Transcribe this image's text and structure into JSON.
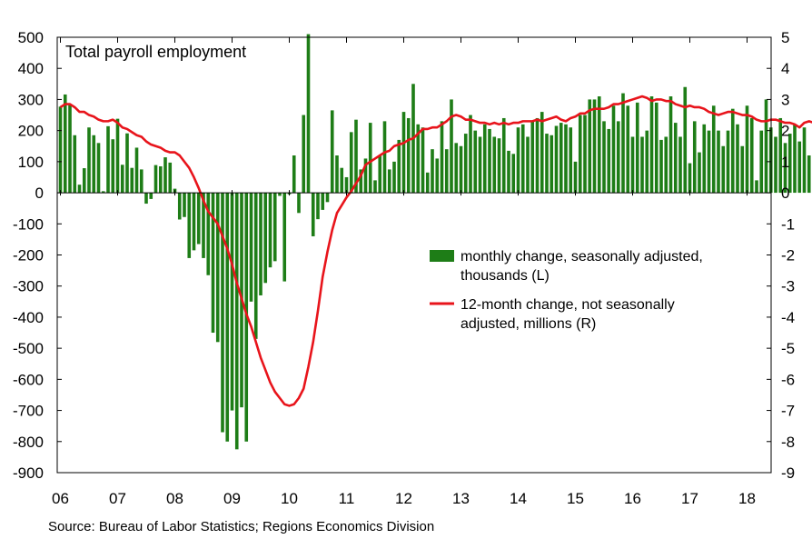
{
  "colors": {
    "bars": "#1e7d17",
    "line": "#e8141b",
    "axis": "#000000"
  },
  "chart_data": {
    "type": "bar",
    "title": "Total payroll employment",
    "source": "Source: Bureau of Labor Statistics; Regions Economics Division",
    "x_start": "2006-01",
    "x_tick_labels": [
      "06",
      "07",
      "08",
      "09",
      "10",
      "11",
      "12",
      "13",
      "14",
      "15",
      "16",
      "17",
      "18"
    ],
    "y_left": {
      "range": [
        -900,
        500
      ],
      "ticks": [
        500,
        400,
        300,
        200,
        100,
        0,
        -100,
        -200,
        -300,
        -400,
        -500,
        -600,
        -700,
        -800,
        -900
      ]
    },
    "y_right": {
      "range": [
        -9,
        5
      ],
      "ticks": [
        5,
        4,
        3,
        2,
        1,
        0,
        -1,
        -2,
        -3,
        -4,
        -5,
        -6,
        -7,
        -8,
        -9
      ]
    },
    "grid": false,
    "legend_position": "center-right",
    "series": [
      {
        "name": "monthly change, seasonally adjusted, thousands (L)",
        "type": "bar",
        "axis": "left",
        "values": [
          277,
          316,
          282,
          185,
          26,
          79,
          210,
          185,
          160,
          5,
          214,
          172,
          238,
          90,
          191,
          80,
          145,
          75,
          -35,
          -20,
          89,
          85,
          114,
          97,
          13,
          -86,
          -78,
          -210,
          -185,
          -165,
          -210,
          -265,
          -450,
          -480,
          -770,
          -800,
          -700,
          -825,
          -690,
          -800,
          -350,
          -470,
          -330,
          -290,
          -240,
          -220,
          -10,
          -285,
          -5,
          120,
          -65,
          250,
          510,
          -140,
          -85,
          -55,
          -30,
          265,
          120,
          80,
          50,
          195,
          235,
          75,
          110,
          225,
          40,
          120,
          230,
          75,
          100,
          170,
          260,
          240,
          350,
          220,
          210,
          65,
          140,
          110,
          230,
          140,
          300,
          160,
          150,
          190,
          250,
          200,
          180,
          220,
          205,
          180,
          175,
          240,
          135,
          125,
          210,
          220,
          180,
          230,
          240,
          260,
          190,
          185,
          215,
          225,
          220,
          210,
          100,
          250,
          250,
          300,
          300,
          310,
          230,
          205,
          280,
          230,
          320,
          280,
          180,
          290,
          180,
          200,
          310,
          290,
          170,
          180,
          310,
          225,
          180,
          340,
          95,
          230,
          130,
          220,
          200,
          280,
          200,
          150,
          200,
          270,
          220,
          150,
          280,
          240,
          40,
          200,
          300,
          210,
          180,
          240,
          160,
          190,
          220,
          165,
          210,
          120,
          300,
          120
        ]
      },
      {
        "name": "12-month change, not seasonally adjusted, millions (R)",
        "type": "line",
        "axis": "right",
        "values": [
          2.75,
          2.85,
          2.85,
          2.75,
          2.6,
          2.6,
          2.5,
          2.45,
          2.35,
          2.3,
          2.3,
          2.35,
          2.25,
          2.1,
          2.05,
          1.95,
          1.85,
          1.8,
          1.65,
          1.55,
          1.5,
          1.45,
          1.35,
          1.3,
          1.3,
          1.2,
          1.0,
          0.8,
          0.5,
          0.15,
          -0.25,
          -0.6,
          -0.8,
          -1.0,
          -1.4,
          -1.8,
          -2.3,
          -2.9,
          -3.4,
          -3.9,
          -4.3,
          -4.8,
          -5.3,
          -5.7,
          -6.1,
          -6.4,
          -6.6,
          -6.8,
          -6.85,
          -6.8,
          -6.6,
          -6.3,
          -5.6,
          -4.8,
          -3.8,
          -2.7,
          -1.9,
          -1.2,
          -0.65,
          -0.4,
          -0.15,
          0.05,
          0.3,
          0.55,
          0.9,
          1.0,
          1.1,
          1.2,
          1.3,
          1.35,
          1.5,
          1.55,
          1.6,
          1.7,
          1.75,
          1.9,
          2.05,
          2.05,
          2.1,
          2.1,
          2.2,
          2.3,
          2.45,
          2.5,
          2.45,
          2.35,
          2.35,
          2.3,
          2.25,
          2.25,
          2.2,
          2.25,
          2.2,
          2.25,
          2.2,
          2.25,
          2.25,
          2.3,
          2.3,
          2.3,
          2.35,
          2.3,
          2.35,
          2.4,
          2.45,
          2.35,
          2.3,
          2.4,
          2.45,
          2.55,
          2.55,
          2.65,
          2.7,
          2.7,
          2.7,
          2.75,
          2.85,
          2.85,
          2.9,
          2.95,
          3.0,
          3.05,
          3.1,
          3.05,
          2.95,
          3.0,
          3.0,
          2.95,
          2.95,
          2.85,
          2.8,
          2.75,
          2.8,
          2.75,
          2.75,
          2.7,
          2.6,
          2.55,
          2.5,
          2.55,
          2.6,
          2.6,
          2.55,
          2.5,
          2.5,
          2.45,
          2.35,
          2.3,
          2.3,
          2.35,
          2.35,
          2.3,
          2.25,
          2.25,
          2.2,
          2.1,
          2.25,
          2.3,
          2.25,
          2.25
        ]
      }
    ]
  }
}
